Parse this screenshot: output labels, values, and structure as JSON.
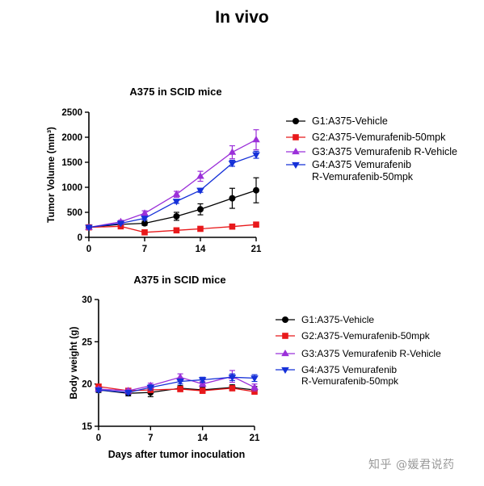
{
  "page": {
    "title": "In vivo",
    "watermark": "知乎 @媛君说药"
  },
  "colors": {
    "G1": "#000000",
    "G2": "#e8191b",
    "G3": "#9b30d9",
    "G4": "#1530d8"
  },
  "chart_data": [
    {
      "type": "line",
      "title": "A375 in SCID mice",
      "xlabel": "",
      "ylabel": "Tumor Volume (mm³)",
      "xlim": [
        0,
        21
      ],
      "ylim": [
        0,
        2500
      ],
      "xticks": [
        0,
        7,
        14,
        21
      ],
      "yticks": [
        0,
        500,
        1000,
        1500,
        2000,
        2500
      ],
      "legend_position": "right",
      "x": [
        0,
        4,
        7,
        11,
        14,
        18,
        21
      ],
      "series": [
        {
          "name": "G1:A375-Vehicle",
          "marker": "circle",
          "color": "#000000",
          "values": [
            200,
            260,
            280,
            420,
            560,
            780,
            940
          ],
          "errors": [
            20,
            30,
            40,
            80,
            110,
            200,
            250
          ]
        },
        {
          "name": "G2:A375-Vemurafenib-50mpk",
          "marker": "square",
          "color": "#e8191b",
          "values": [
            200,
            220,
            100,
            140,
            170,
            215,
            255
          ],
          "errors": [
            10,
            15,
            15,
            15,
            20,
            25,
            30
          ]
        },
        {
          "name": "G3:A375 Vemurafenib R-Vehicle",
          "marker": "triangle-up",
          "color": "#9b30d9",
          "values": [
            200,
            310,
            480,
            860,
            1220,
            1700,
            1950
          ],
          "errors": [
            20,
            30,
            50,
            60,
            100,
            130,
            200
          ]
        },
        {
          "name": "G4:A375 Vemurafenib R-Vemurafenib-50mpk",
          "marker": "triangle-down",
          "color": "#1530d8",
          "values": [
            200,
            280,
            380,
            720,
            940,
            1480,
            1650
          ],
          "errors": [
            15,
            20,
            30,
            40,
            40,
            60,
            70
          ]
        }
      ]
    },
    {
      "type": "line",
      "title": "A375 in SCID mice",
      "xlabel": "Days after tumor inoculation",
      "ylabel": "Body weight (g)",
      "xlim": [
        0,
        21
      ],
      "ylim": [
        15,
        30
      ],
      "xticks": [
        0,
        7,
        14,
        21
      ],
      "yticks": [
        15,
        20,
        25,
        30
      ],
      "legend_position": "right",
      "x": [
        0,
        4,
        7,
        11,
        14,
        18,
        21
      ],
      "series": [
        {
          "name": "G1:A375-Vehicle",
          "marker": "circle",
          "color": "#000000",
          "values": [
            19.3,
            18.9,
            19.0,
            19.5,
            19.3,
            19.6,
            19.3
          ],
          "errors": [
            0.3,
            0.3,
            0.5,
            0.3,
            0.3,
            0.3,
            0.4
          ]
        },
        {
          "name": "G2:A375-Vemurafenib-50mpk",
          "marker": "square",
          "color": "#e8191b",
          "values": [
            19.7,
            19.2,
            19.3,
            19.4,
            19.2,
            19.5,
            19.1
          ],
          "errors": [
            0.2,
            0.2,
            0.3,
            0.3,
            0.3,
            0.3,
            0.3
          ]
        },
        {
          "name": "G3:A375 Vemurafenib R-Vehicle",
          "marker": "triangle-up",
          "color": "#9b30d9",
          "values": [
            19.4,
            19.2,
            19.8,
            20.8,
            20.0,
            20.9,
            19.6
          ],
          "errors": [
            0.2,
            0.2,
            0.3,
            0.4,
            0.3,
            0.7,
            0.4
          ]
        },
        {
          "name": "G4:A375 Vemurafenib R-Vemurafenib-50mpk",
          "marker": "triangle-down",
          "color": "#1530d8",
          "values": [
            19.3,
            19.0,
            19.6,
            20.3,
            20.5,
            20.8,
            20.7
          ],
          "errors": [
            0.2,
            0.2,
            0.3,
            0.3,
            0.3,
            0.4,
            0.4
          ]
        }
      ]
    }
  ]
}
